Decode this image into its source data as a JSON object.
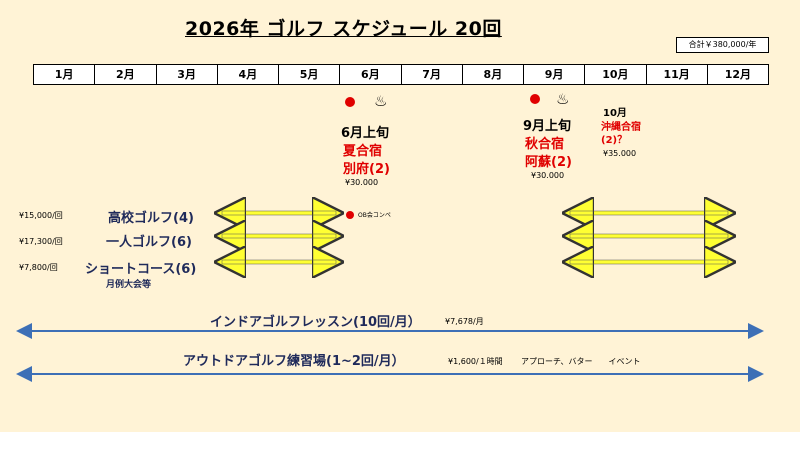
{
  "title": "2026年 ゴルフ スケジュール 20回",
  "total_cost": "合計￥380,000/年",
  "months": [
    "1月",
    "2月",
    "3月",
    "4月",
    "5月",
    "6月",
    "7月",
    "8月",
    "9月",
    "10月",
    "11月",
    "12月"
  ],
  "summer_camp": {
    "when": "6月上旬",
    "name": "夏合宿",
    "place": "別府(2)",
    "cost": "¥30.000"
  },
  "autumn_camp": {
    "when": "9月上旬",
    "name": "秋合宿",
    "place": "阿蘇(2)",
    "cost": "¥30.000"
  },
  "okinawa_camp": {
    "when": "10月",
    "name": "沖縄合宿",
    "note": "(2)？",
    "cost": "¥35.000"
  },
  "ob_event": "OB会コンペ",
  "rows": [
    {
      "price": "¥15,000/回",
      "label": "高校ゴルフ(4)"
    },
    {
      "price": "¥17,300/回",
      "label": "一人ゴルフ(6)"
    },
    {
      "price": "¥7,800/回",
      "label": "ショートコース(6)"
    }
  ],
  "monthly_meets": "月例大会等",
  "indoor": {
    "label": "インドアゴルフレッスン(10回/月）",
    "price": "¥7,678/月"
  },
  "outdoor": {
    "label": "アウトドアゴルフ練習場(1~2回/月）",
    "price": "¥1,600/１時間",
    "items": "アプローチ、バター　　イベント"
  },
  "colors": {
    "background": "#fff3d6",
    "accent_red": "#e00000",
    "arrow_yellow": "#ffff33",
    "arrow_blue": "#3d6fb6",
    "label_navy": "#1f2a5a"
  },
  "icons": [
    "red-dot-icon",
    "onsen-icon"
  ]
}
